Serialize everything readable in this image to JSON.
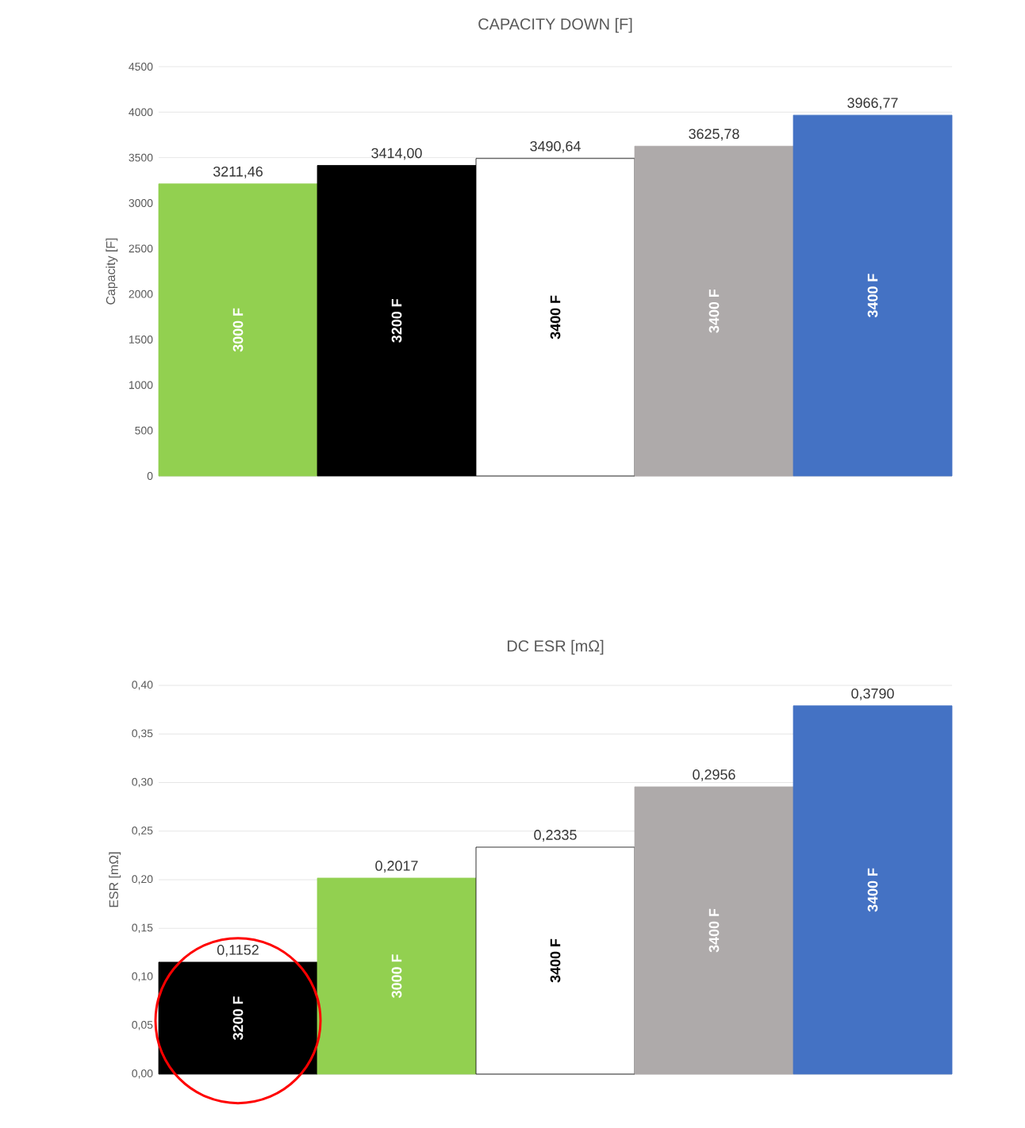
{
  "chart_data": [
    {
      "type": "bar",
      "title": "CAPACITY DOWN [F]",
      "ylabel": "Capacity [F]",
      "categories": [
        null,
        null,
        null,
        null,
        null
      ],
      "annotations": [
        "3000 F",
        "3200 F",
        "3400 F",
        "3400 F",
        "3400 F"
      ],
      "colors": [
        "#92d050",
        "#000000",
        "#ffffff",
        "#aeaaaa",
        "#4472c4"
      ],
      "values": [
        3211.46,
        3414.0,
        3490.64,
        3625.78,
        3966.77
      ],
      "value_labels": [
        "3211,46",
        "3414,00",
        "3490,64",
        "3625,78",
        "3966,77"
      ],
      "ylim": [
        0,
        4500
      ],
      "yticks": [
        0,
        500,
        1000,
        1500,
        2000,
        2500,
        3000,
        3500,
        4000,
        4500
      ],
      "grid": "y",
      "tick_labels": "y"
    },
    {
      "type": "bar",
      "title": "DC ESR [mΩ]",
      "ylabel": "ESR [mΩ]",
      "categories": [
        null,
        null,
        null,
        null,
        null
      ],
      "annotations": [
        "3200 F",
        "3000 F",
        "3400 F",
        "3400 F",
        "3400 F"
      ],
      "colors": [
        "#000000",
        "#92d050",
        "#ffffff",
        "#aeaaaa",
        "#4472c4"
      ],
      "values": [
        0.1152,
        0.2017,
        0.2335,
        0.2956,
        0.379
      ],
      "value_labels": [
        "0,1152",
        "0,2017",
        "0,2335",
        "0,2956",
        "0,3790"
      ],
      "ylim": [
        0,
        0.4
      ],
      "yticks": [
        {
          "value": 0,
          "label": "0,00"
        },
        {
          "value": 0.05,
          "label": "0,05"
        },
        {
          "value": 0.1,
          "label": "0,10"
        },
        {
          "value": 0.15,
          "label": "0,15"
        },
        {
          "value": 0.2,
          "label": "0,20"
        },
        {
          "value": 0.25,
          "label": "0,25"
        },
        {
          "value": 0.3,
          "label": "0,30"
        },
        {
          "value": 0.35,
          "label": "0,35"
        },
        {
          "value": 0.4,
          "label": "0,40"
        }
      ],
      "grid": "y",
      "tick_labels": "y"
    }
  ]
}
